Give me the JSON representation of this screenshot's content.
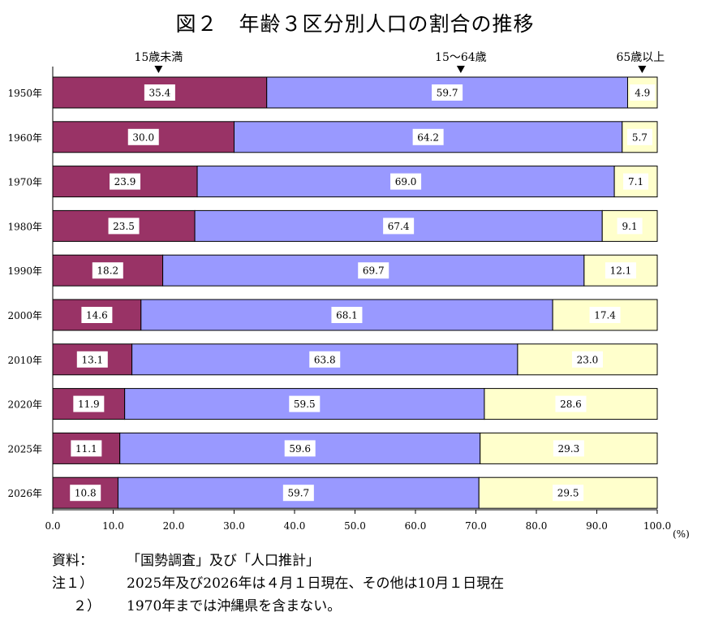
{
  "chart_data": {
    "type": "bar",
    "title": "図２　年齢３区分別人口の割合の推移",
    "unit": "(%)",
    "categories": [
      "1950年",
      "1960年",
      "1970年",
      "1980年",
      "1990年",
      "2000年",
      "2010年",
      "2020年",
      "2025年",
      "2026年"
    ],
    "series": [
      {
        "name": "15歳未満",
        "color": "#993366",
        "values": [
          35.4,
          30.0,
          23.9,
          23.5,
          18.2,
          14.6,
          13.1,
          11.9,
          11.1,
          10.8
        ]
      },
      {
        "name": "15～64歳",
        "color": "#9999ff",
        "values": [
          59.7,
          64.2,
          69.0,
          67.4,
          69.7,
          68.1,
          63.8,
          59.5,
          59.6,
          59.7
        ]
      },
      {
        "name": "65歳以上",
        "color": "#ffffcc",
        "values": [
          4.9,
          5.7,
          7.1,
          9.1,
          12.1,
          17.4,
          23.0,
          28.6,
          29.3,
          29.5
        ]
      }
    ],
    "value_labels": [
      [
        "35.4",
        "59.7",
        "4.9"
      ],
      [
        "30.0",
        "64.2",
        "5.7"
      ],
      [
        "23.9",
        "69.0",
        "7.1"
      ],
      [
        "23.5",
        "67.4",
        "9.1"
      ],
      [
        "18.2",
        "69.7",
        "12.1"
      ],
      [
        "14.6",
        "68.1",
        "17.4"
      ],
      [
        "13.1",
        "63.8",
        "23.0"
      ],
      [
        "11.9",
        "59.5",
        "28.6"
      ],
      [
        "11.1",
        "59.6",
        "29.3"
      ],
      [
        "10.8",
        "59.7",
        "29.5"
      ]
    ],
    "stacked": true,
    "orientation": "horizontal",
    "xlim": [
      0,
      100
    ],
    "xticks": [
      "0.0",
      "10.0",
      "20.0",
      "30.0",
      "40.0",
      "50.0",
      "60.0",
      "70.0",
      "80.0",
      "90.0",
      "100.0"
    ],
    "grid": false,
    "legend": "top",
    "legend_markers": [
      {
        "label": "15歳未満",
        "pointer_value": 17.5
      },
      {
        "label": "15～64歳",
        "pointer_value": 67.5
      },
      {
        "label": "65歳以上",
        "pointer_value": 97.5
      }
    ]
  },
  "notes": {
    "source_label": "資料：",
    "source_text": "「国勢調査」及び「人口推計」",
    "note1_label": "注１）",
    "note1_text": "2025年及び2026年は４月１日現在、その他は10月１日現在",
    "note2_label": "２）",
    "note2_text": "1970年までは沖縄県を含まない。"
  }
}
